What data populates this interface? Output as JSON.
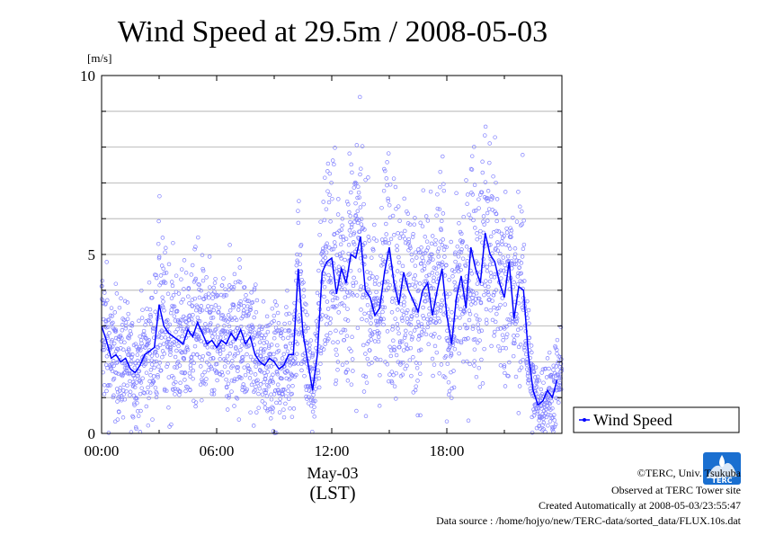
{
  "chart_data": {
    "type": "scatter",
    "title": "Wind Speed at 29.5m / 2008-05-03",
    "unit_label": "[m/s]",
    "ylim": [
      0,
      10
    ],
    "yticks": [
      "0",
      "5",
      "10"
    ],
    "xlim_hours": [
      0,
      24
    ],
    "xticks": [
      "00:00",
      "06:00",
      "12:00",
      "18:00"
    ],
    "xlabel_date": "May-03",
    "xlabel_tz": "(LST)",
    "grid": true,
    "legend": {
      "placement": "right",
      "label": "Wind Speed"
    },
    "series": [
      {
        "name": "Wind Speed",
        "color": "#0000ff",
        "scatter_color": "#8080ff",
        "x_hours": [
          0.0,
          0.25,
          0.5,
          0.75,
          1.0,
          1.25,
          1.5,
          1.75,
          2.0,
          2.25,
          2.5,
          2.75,
          3.0,
          3.25,
          3.5,
          3.75,
          4.0,
          4.25,
          4.5,
          4.75,
          5.0,
          5.25,
          5.5,
          5.75,
          6.0,
          6.25,
          6.5,
          6.75,
          7.0,
          7.25,
          7.5,
          7.75,
          8.0,
          8.25,
          8.5,
          8.75,
          9.0,
          9.25,
          9.5,
          9.75,
          10.0,
          10.25,
          10.5,
          10.75,
          11.0,
          11.25,
          11.5,
          11.75,
          12.0,
          12.25,
          12.5,
          12.75,
          13.0,
          13.25,
          13.5,
          13.75,
          14.0,
          14.25,
          14.5,
          14.75,
          15.0,
          15.25,
          15.5,
          15.75,
          16.0,
          16.25,
          16.5,
          16.75,
          17.0,
          17.25,
          17.5,
          17.75,
          18.0,
          18.25,
          18.5,
          18.75,
          19.0,
          19.25,
          19.5,
          19.75,
          20.0,
          20.25,
          20.5,
          20.75,
          21.0,
          21.25,
          21.5,
          21.75,
          22.0,
          22.25,
          22.5,
          22.75,
          23.0,
          23.25,
          23.5,
          23.75
        ],
        "values": [
          3.0,
          2.6,
          2.1,
          2.2,
          2.0,
          2.1,
          1.8,
          1.7,
          1.9,
          2.2,
          2.3,
          2.4,
          3.6,
          3.0,
          2.8,
          2.7,
          2.6,
          2.5,
          2.9,
          2.7,
          3.1,
          2.8,
          2.5,
          2.6,
          2.4,
          2.6,
          2.5,
          2.8,
          2.6,
          2.9,
          2.5,
          2.7,
          2.2,
          2.0,
          1.9,
          2.1,
          2.0,
          1.8,
          1.9,
          2.2,
          2.2,
          4.6,
          2.8,
          2.0,
          1.2,
          2.2,
          4.5,
          4.8,
          4.9,
          3.9,
          4.6,
          4.2,
          5.0,
          4.9,
          5.5,
          4.0,
          3.8,
          3.3,
          3.5,
          4.5,
          5.2,
          4.2,
          3.6,
          4.5,
          4.0,
          3.7,
          3.4,
          4.0,
          4.2,
          3.3,
          4.0,
          4.6,
          3.3,
          2.5,
          3.8,
          4.4,
          3.5,
          5.2,
          4.6,
          4.2,
          5.6,
          5.0,
          4.8,
          4.2,
          3.8,
          4.8,
          3.2,
          4.1,
          4.0,
          2.2,
          1.2,
          0.8,
          0.9,
          1.2,
          1.0,
          1.5
        ]
      }
    ]
  },
  "credits": {
    "line1": "©TERC, Univ. Tsukuba",
    "line2": "Observed at TERC Tower site",
    "line3": "Created Automatically at 2008-05-03/23:55:47",
    "line4": "Data source : /home/hojyo/new/TERC-data/sorted_data/FLUX.10s.dat",
    "logo_text": "TERC"
  }
}
